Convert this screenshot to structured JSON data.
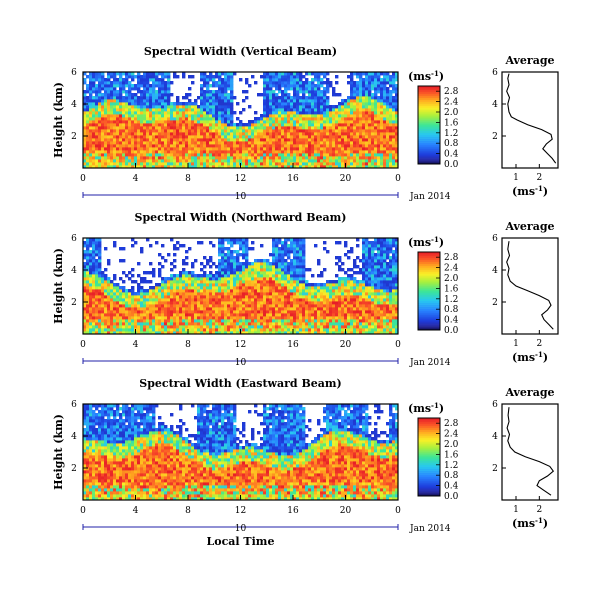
{
  "chart_data": [
    {
      "type": "heatmap",
      "title": "Spectral Width (Vertical Beam)",
      "ylabel": "Height (km)",
      "x_ticks": [
        "0",
        "4",
        "8",
        "12",
        "16",
        "20",
        "0"
      ],
      "y_ticks": [
        "2",
        "4",
        "6"
      ],
      "xlim": [
        0,
        24
      ],
      "ylim": [
        0,
        6
      ],
      "date_marker": "10",
      "date_label": "Jan 2014",
      "colorbar": {
        "unit": "(ms",
        "unit_sup": "-1",
        "unit_close": ")",
        "ticks": [
          "0.0",
          "0.4",
          "0.8",
          "1.2",
          "1.6",
          "2.0",
          "2.4",
          "2.8"
        ],
        "range": [
          0,
          3.0
        ]
      },
      "profile": {
        "title": "Average",
        "y_ticks": [
          "2",
          "4",
          "6"
        ],
        "x_ticks": [
          "1",
          "2"
        ],
        "xlim": [
          0.4,
          2.8
        ],
        "ylim": [
          0,
          6
        ],
        "xlabel": "(ms",
        "xlabel_sup": "-1",
        "xlabel_close": ")",
        "points": [
          [
            2.7,
            0.3
          ],
          [
            2.55,
            0.6
          ],
          [
            2.35,
            0.9
          ],
          [
            2.15,
            1.2
          ],
          [
            2.3,
            1.5
          ],
          [
            2.55,
            1.8
          ],
          [
            2.5,
            2.1
          ],
          [
            2.1,
            2.4
          ],
          [
            1.5,
            2.7
          ],
          [
            1.05,
            3.0
          ],
          [
            0.8,
            3.2
          ],
          [
            0.7,
            3.5
          ],
          [
            0.65,
            4.0
          ],
          [
            0.72,
            4.4
          ],
          [
            0.6,
            4.8
          ],
          [
            0.7,
            5.2
          ],
          [
            0.65,
            5.6
          ],
          [
            0.7,
            5.9
          ]
        ]
      }
    },
    {
      "type": "heatmap",
      "title": "Spectral Width (Northward Beam)",
      "ylabel": "Height (km)",
      "x_ticks": [
        "0",
        "4",
        "8",
        "12",
        "16",
        "20",
        "0"
      ],
      "y_ticks": [
        "2",
        "4",
        "6"
      ],
      "xlim": [
        0,
        24
      ],
      "ylim": [
        0,
        6
      ],
      "date_marker": "10",
      "date_label": "Jan 2014",
      "colorbar": {
        "unit": "(ms",
        "unit_sup": "-1",
        "unit_close": ")",
        "ticks": [
          "0.0",
          "0.4",
          "0.8",
          "1.2",
          "1.6",
          "2.0",
          "2.4",
          "2.8"
        ],
        "range": [
          0,
          3.0
        ]
      },
      "profile": {
        "title": "Average",
        "y_ticks": [
          "2",
          "4",
          "6"
        ],
        "x_ticks": [
          "1",
          "2"
        ],
        "xlim": [
          0.4,
          2.8
        ],
        "ylim": [
          0,
          6
        ],
        "xlabel": "(ms",
        "xlabel_sup": "-1",
        "xlabel_close": ")",
        "points": [
          [
            2.6,
            0.3
          ],
          [
            2.4,
            0.6
          ],
          [
            2.2,
            0.9
          ],
          [
            2.1,
            1.2
          ],
          [
            2.35,
            1.5
          ],
          [
            2.5,
            1.8
          ],
          [
            2.4,
            2.1
          ],
          [
            2.0,
            2.4
          ],
          [
            1.5,
            2.7
          ],
          [
            1.0,
            3.0
          ],
          [
            0.75,
            3.3
          ],
          [
            0.65,
            3.7
          ],
          [
            0.7,
            4.1
          ],
          [
            0.6,
            4.5
          ],
          [
            0.72,
            4.9
          ],
          [
            0.65,
            5.3
          ],
          [
            0.7,
            5.8
          ]
        ]
      }
    },
    {
      "type": "heatmap",
      "title": "Spectral Width (Eastward Beam)",
      "ylabel": "Height (km)",
      "x_ticks": [
        "0",
        "4",
        "8",
        "12",
        "16",
        "20",
        "0"
      ],
      "y_ticks": [
        "2",
        "4",
        "6"
      ],
      "xlim": [
        0,
        24
      ],
      "ylim": [
        0,
        6
      ],
      "date_marker": "10",
      "date_label": "Jan 2014",
      "xlabel": "Local Time",
      "colorbar": {
        "unit": "(ms",
        "unit_sup": "-1",
        "unit_close": ")",
        "ticks": [
          "0.0",
          "0.4",
          "0.8",
          "1.2",
          "1.6",
          "2.0",
          "2.4",
          "2.8"
        ],
        "range": [
          0,
          3.0
        ]
      },
      "profile": {
        "title": "Average",
        "y_ticks": [
          "2",
          "4",
          "6"
        ],
        "x_ticks": [
          "1",
          "2"
        ],
        "xlim": [
          0.4,
          2.8
        ],
        "ylim": [
          0,
          6
        ],
        "xlabel": "(ms",
        "xlabel_sup": "-1",
        "xlabel_close": ")",
        "points": [
          [
            2.5,
            0.3
          ],
          [
            2.2,
            0.6
          ],
          [
            1.9,
            0.9
          ],
          [
            2.0,
            1.2
          ],
          [
            2.35,
            1.5
          ],
          [
            2.6,
            1.8
          ],
          [
            2.45,
            2.1
          ],
          [
            2.0,
            2.4
          ],
          [
            1.4,
            2.7
          ],
          [
            0.95,
            3.0
          ],
          [
            0.75,
            3.3
          ],
          [
            0.65,
            3.7
          ],
          [
            0.72,
            4.1
          ],
          [
            0.62,
            4.5
          ],
          [
            0.7,
            4.9
          ],
          [
            0.66,
            5.3
          ],
          [
            0.7,
            5.8
          ]
        ]
      }
    }
  ]
}
